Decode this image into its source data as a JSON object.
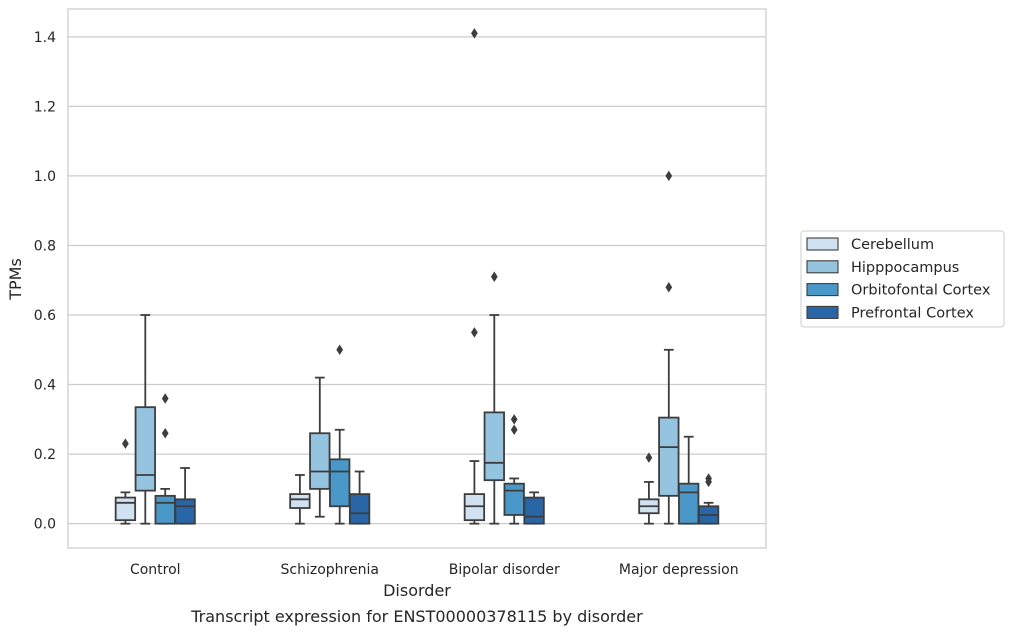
{
  "chart_data": {
    "type": "box",
    "title": "",
    "caption": "Transcript expression for ENST00000378115 by disorder",
    "xlabel": "Disorder",
    "ylabel": "TPMs",
    "ylim": [
      -0.07,
      1.48
    ],
    "yticks": [
      0.0,
      0.2,
      0.4,
      0.6,
      0.8,
      1.0,
      1.2,
      1.4
    ],
    "ytick_labels": [
      "0.0",
      "0.2",
      "0.4",
      "0.6",
      "0.8",
      "1.0",
      "1.2",
      "1.4"
    ],
    "grid": "horizontal",
    "legend_position": "right",
    "categories": [
      "Control",
      "Schizophrenia",
      "Bipolar disorder",
      "Major depression"
    ],
    "series": [
      {
        "name": "Cerebellum",
        "color": "#d0e1f2",
        "boxes": [
          {
            "whisker_low": 0.0,
            "q1": 0.01,
            "median": 0.06,
            "q3": 0.075,
            "whisker_high": 0.09,
            "outliers": [
              0.23
            ]
          },
          {
            "whisker_low": 0.0,
            "q1": 0.045,
            "median": 0.07,
            "q3": 0.085,
            "whisker_high": 0.14,
            "outliers": []
          },
          {
            "whisker_low": 0.0,
            "q1": 0.01,
            "median": 0.05,
            "q3": 0.085,
            "whisker_high": 0.18,
            "outliers": [
              0.55,
              1.41
            ]
          },
          {
            "whisker_low": 0.0,
            "q1": 0.03,
            "median": 0.05,
            "q3": 0.07,
            "whisker_high": 0.12,
            "outliers": [
              0.19
            ]
          }
        ]
      },
      {
        "name": "Hipppocampus",
        "color": "#94c4df",
        "boxes": [
          {
            "whisker_low": 0.0,
            "q1": 0.095,
            "median": 0.14,
            "q3": 0.335,
            "whisker_high": 0.6,
            "outliers": []
          },
          {
            "whisker_low": 0.02,
            "q1": 0.1,
            "median": 0.15,
            "q3": 0.26,
            "whisker_high": 0.42,
            "outliers": []
          },
          {
            "whisker_low": 0.0,
            "q1": 0.125,
            "median": 0.175,
            "q3": 0.32,
            "whisker_high": 0.6,
            "outliers": [
              0.71
            ]
          },
          {
            "whisker_low": 0.0,
            "q1": 0.08,
            "median": 0.22,
            "q3": 0.305,
            "whisker_high": 0.5,
            "outliers": [
              0.68,
              1.0
            ]
          }
        ]
      },
      {
        "name": "Orbitofontal Cortex",
        "color": "#4a98c9",
        "boxes": [
          {
            "whisker_low": 0.0,
            "q1": 0.0,
            "median": 0.06,
            "q3": 0.08,
            "whisker_high": 0.1,
            "outliers": [
              0.26,
              0.36
            ]
          },
          {
            "whisker_low": 0.0,
            "q1": 0.05,
            "median": 0.15,
            "q3": 0.185,
            "whisker_high": 0.27,
            "outliers": [
              0.5
            ]
          },
          {
            "whisker_low": 0.0,
            "q1": 0.025,
            "median": 0.095,
            "q3": 0.115,
            "whisker_high": 0.13,
            "outliers": [
              0.27,
              0.3
            ]
          },
          {
            "whisker_low": 0.0,
            "q1": 0.0,
            "median": 0.09,
            "q3": 0.115,
            "whisker_high": 0.25,
            "outliers": []
          }
        ]
      },
      {
        "name": "Prefrontal Cortex",
        "color": "#2866a8",
        "boxes": [
          {
            "whisker_low": 0.0,
            "q1": 0.0,
            "median": 0.05,
            "q3": 0.07,
            "whisker_high": 0.16,
            "outliers": []
          },
          {
            "whisker_low": 0.0,
            "q1": 0.0,
            "median": 0.03,
            "q3": 0.085,
            "whisker_high": 0.15,
            "outliers": []
          },
          {
            "whisker_low": 0.0,
            "q1": 0.0,
            "median": 0.02,
            "q3": 0.075,
            "whisker_high": 0.09,
            "outliers": []
          },
          {
            "whisker_low": 0.0,
            "q1": 0.0,
            "median": 0.025,
            "q3": 0.05,
            "whisker_high": 0.06,
            "outliers": [
              0.12,
              0.13
            ]
          }
        ]
      }
    ]
  }
}
